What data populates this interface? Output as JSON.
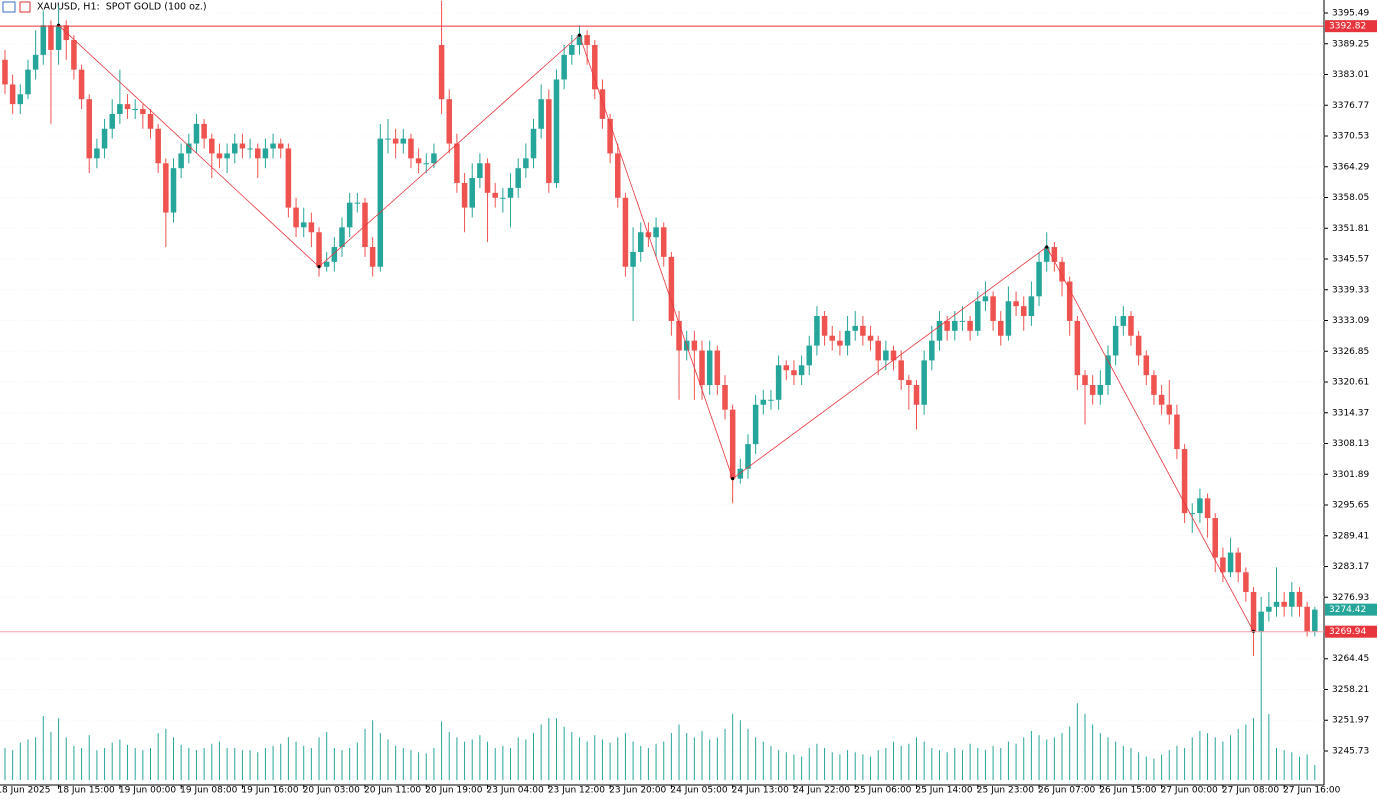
{
  "chart_data": {
    "type": "candlestick",
    "title": "XAUUSD, H1:  SPOT GOLD (100 oz.)",
    "up_color": "#26a69a",
    "down_color": "#ef5350",
    "volume_color": "#26a69a",
    "ylim": [
      3238.83,
      3398.13
    ],
    "yticks": [
      3395.49,
      3389.25,
      3383.01,
      3376.77,
      3370.53,
      3364.29,
      3358.05,
      3351.81,
      3345.57,
      3339.33,
      3333.09,
      3326.85,
      3320.61,
      3314.37,
      3308.13,
      3301.89,
      3295.65,
      3289.41,
      3283.17,
      3276.93,
      3264.45,
      3258.21,
      3251.97,
      3245.73
    ],
    "grid": true,
    "xlim": [
      -0.65,
      172.2
    ],
    "xticks": [
      {
        "value": -1,
        "label": "18 Jun 2025"
      },
      {
        "value": 7,
        "label": "18 Jun 15:00"
      },
      {
        "value": 15,
        "label": "19 Jun 00:00"
      },
      {
        "value": 23,
        "label": "19 Jun 08:00"
      },
      {
        "value": 31,
        "label": "19 Jun 16:00"
      },
      {
        "value": 39,
        "label": "20 Jun 03:00"
      },
      {
        "value": 47,
        "label": "20 Jun 11:00"
      },
      {
        "value": 55,
        "label": "20 Jun 19:00"
      },
      {
        "value": 63,
        "label": "23 Jun 04:00"
      },
      {
        "value": 71,
        "label": "23 Jun 12:00"
      },
      {
        "value": 79,
        "label": "23 Jun 20:00"
      },
      {
        "value": 87,
        "label": "24 Jun 05:00"
      },
      {
        "value": 95,
        "label": "24 Jun 13:00"
      },
      {
        "value": 103,
        "label": "24 Jun 22:00"
      },
      {
        "value": 111,
        "label": "25 Jun 06:00"
      },
      {
        "value": 119,
        "label": "25 Jun 14:00"
      },
      {
        "value": 127,
        "label": "25 Jun 23:00"
      },
      {
        "value": 135,
        "label": "26 Jun 07:00"
      },
      {
        "value": 143,
        "label": "26 Jun 15:00"
      },
      {
        "value": 151,
        "label": "27 Jun 00:00"
      },
      {
        "value": 159,
        "label": "27 Jun 08:00"
      },
      {
        "value": 167,
        "label": "27 Jun 16:00"
      }
    ],
    "open": [
      3386,
      3381,
      3377,
      3379,
      3384,
      3387,
      3393,
      3388,
      3393,
      3390,
      3384,
      3378,
      3366,
      3368,
      3372,
      3375,
      3377,
      3376,
      3376,
      3375,
      3372,
      3365,
      3355,
      3364,
      3367,
      3369,
      3373,
      3370,
      3367,
      3366,
      3367,
      3369,
      3368,
      3368,
      3366,
      3368,
      3369,
      3368,
      3356,
      3352,
      3353,
      3351,
      3344,
      3345,
      3348,
      3352,
      3357,
      3357,
      3348,
      3344,
      3370,
      3370,
      3369,
      3370,
      3366,
      3365,
      3365,
      3389,
      3378,
      3369,
      3361,
      3356,
      3362,
      3365,
      3359,
      3358,
      3358,
      3360,
      3364,
      3366,
      3372,
      3378,
      3361,
      3382,
      3387,
      3389,
      3391,
      3389,
      3380,
      3374,
      3367,
      3358,
      3344,
      3347,
      3351,
      3350,
      3352,
      3346,
      3333,
      3327,
      3329,
      3327,
      3320,
      3327,
      3320,
      3315,
      3301,
      3303,
      3308,
      3316,
      3317,
      3317,
      3324,
      3323,
      3322,
      3324,
      3328,
      3334,
      3330,
      3329,
      3328,
      3331,
      3332,
      3330,
      3329,
      3325,
      3327,
      3325,
      3321,
      3320,
      3316,
      3325,
      3329,
      3333,
      3331,
      3333,
      3333,
      3331,
      3337,
      3338,
      3333,
      3330,
      3337,
      3336,
      3334,
      3338,
      3345,
      3348,
      3345,
      3341,
      3333,
      3322,
      3320,
      3318,
      3320,
      3326,
      3332,
      3334,
      3330,
      3326,
      3322,
      3318,
      3316,
      3314,
      3307,
      3294,
      3294,
      3297,
      3293,
      3285,
      3282,
      3286,
      3282,
      3278,
      3270,
      3274,
      3275,
      3276,
      3275,
      3278,
      3275,
      3270
    ],
    "high": [
      3388,
      3383,
      3381,
      3386,
      3392,
      3396,
      3394,
      3397,
      3394,
      3391,
      3385,
      3379,
      3370,
      3374,
      3378,
      3384,
      3379,
      3378,
      3377,
      3376,
      3373,
      3366,
      3366,
      3369,
      3371,
      3375,
      3374,
      3371,
      3369,
      3369,
      3371,
      3371,
      3370,
      3369,
      3370,
      3371,
      3370,
      3369,
      3358,
      3356,
      3355,
      3352,
      3347,
      3350,
      3354,
      3359,
      3359,
      3358,
      3350,
      3373,
      3374,
      3372,
      3372,
      3371,
      3368,
      3367,
      3369,
      3398,
      3380,
      3371,
      3363,
      3365,
      3367,
      3366,
      3361,
      3360,
      3363,
      3366,
      3369,
      3374,
      3381,
      3380,
      3384,
      3389,
      3391,
      3393,
      3392,
      3390,
      3382,
      3375,
      3369,
      3359,
      3352,
      3353,
      3353,
      3354,
      3353,
      3347,
      3335,
      3331,
      3331,
      3329,
      3329,
      3328,
      3322,
      3316,
      3305,
      3310,
      3318,
      3319,
      3319,
      3326,
      3325,
      3325,
      3326,
      3330,
      3336,
      3335,
      3332,
      3331,
      3334,
      3335,
      3334,
      3332,
      3330,
      3329,
      3328,
      3327,
      3322,
      3321,
      3327,
      3332,
      3335,
      3334,
      3335,
      3336,
      3334,
      3339,
      3341,
      3339,
      3335,
      3340,
      3339,
      3338,
      3341,
      3347,
      3351,
      3349,
      3346,
      3342,
      3334,
      3323,
      3322,
      3323,
      3328,
      3334,
      3336,
      3335,
      3331,
      3327,
      3323,
      3320,
      3321,
      3316,
      3308,
      3296,
      3299,
      3298,
      3294,
      3287,
      3289,
      3287,
      3283,
      3279,
      3277,
      3278,
      3283,
      3278,
      3280,
      3279,
      3276,
      3275
    ],
    "low": [
      3379,
      3375,
      3375,
      3378,
      3382,
      3385,
      3373,
      3385,
      3386,
      3382,
      3376,
      3363,
      3364,
      3366,
      3370,
      3373,
      3374,
      3374,
      3372,
      3370,
      3363,
      3348,
      3353,
      3362,
      3365,
      3367,
      3368,
      3362,
      3364,
      3363,
      3365,
      3366,
      3366,
      3362,
      3364,
      3366,
      3366,
      3354,
      3350,
      3350,
      3348,
      3342,
      3343,
      3343,
      3346,
      3350,
      3355,
      3346,
      3342,
      3343,
      3367,
      3366,
      3367,
      3364,
      3363,
      3363,
      3364,
      3375,
      3367,
      3359,
      3351,
      3354,
      3360,
      3349,
      3356,
      3355,
      3352,
      3358,
      3362,
      3364,
      3370,
      3359,
      3360,
      3380,
      3385,
      3387,
      3385,
      3378,
      3372,
      3365,
      3356,
      3342,
      3333,
      3345,
      3348,
      3346,
      3344,
      3330,
      3317,
      3325,
      3317,
      3317,
      3318,
      3318,
      3313,
      3296,
      3300,
      3301,
      3306,
      3314,
      3315,
      3315,
      3321,
      3320,
      3320,
      3322,
      3326,
      3328,
      3327,
      3326,
      3326,
      3329,
      3328,
      3327,
      3322,
      3323,
      3323,
      3319,
      3315,
      3311,
      3314,
      3323,
      3327,
      3329,
      3329,
      3331,
      3329,
      3330,
      3335,
      3331,
      3328,
      3329,
      3334,
      3331,
      3332,
      3336,
      3343,
      3343,
      3338,
      3330,
      3319,
      3312,
      3316,
      3316,
      3318,
      3324,
      3330,
      3328,
      3324,
      3320,
      3316,
      3314,
      3312,
      3305,
      3292,
      3290,
      3292,
      3289,
      3282,
      3280,
      3281,
      3280,
      3276,
      3265,
      3256,
      3272,
      3273,
      3273,
      3273,
      3273,
      3269,
      3269
    ],
    "close": [
      3381,
      3377,
      3379,
      3384,
      3387,
      3393,
      3388,
      3393,
      3390,
      3384,
      3378,
      3366,
      3368,
      3372,
      3375,
      3377,
      3376,
      3376,
      3375,
      3372,
      3365,
      3355,
      3364,
      3367,
      3369,
      3373,
      3370,
      3367,
      3366,
      3367,
      3369,
      3368,
      3368,
      3366,
      3368,
      3369,
      3368,
      3356,
      3352,
      3353,
      3351,
      3344,
      3345,
      3348,
      3352,
      3357,
      3357,
      3348,
      3344,
      3370,
      3370,
      3369,
      3370,
      3366,
      3365,
      3365,
      3367,
      3378,
      3369,
      3361,
      3356,
      3362,
      3365,
      3359,
      3358,
      3358,
      3360,
      3364,
      3366,
      3372,
      3378,
      3361,
      3382,
      3387,
      3389,
      3391,
      3389,
      3380,
      3374,
      3367,
      3358,
      3344,
      3347,
      3351,
      3350,
      3352,
      3346,
      3333,
      3327,
      3329,
      3327,
      3320,
      3327,
      3320,
      3315,
      3301,
      3303,
      3308,
      3316,
      3317,
      3317,
      3324,
      3323,
      3322,
      3324,
      3328,
      3334,
      3330,
      3329,
      3328,
      3331,
      3332,
      3330,
      3329,
      3325,
      3327,
      3325,
      3321,
      3320,
      3316,
      3325,
      3329,
      3333,
      3331,
      3333,
      3333,
      3331,
      3337,
      3338,
      3333,
      3330,
      3337,
      3336,
      3334,
      3338,
      3345,
      3348,
      3345,
      3341,
      3333,
      3322,
      3320,
      3318,
      3320,
      3326,
      3332,
      3334,
      3330,
      3326,
      3322,
      3318,
      3316,
      3314,
      3307,
      3294,
      3294,
      3297,
      3293,
      3285,
      3282,
      3286,
      3282,
      3278,
      3270,
      3274,
      3275,
      3276,
      3275,
      3278,
      3275,
      3270,
      3274.42
    ],
    "volume": [
      30,
      28,
      35,
      38,
      40,
      60,
      45,
      58,
      40,
      32,
      30,
      42,
      28,
      30,
      35,
      38,
      33,
      30,
      28,
      30,
      44,
      48,
      40,
      33,
      30,
      28,
      30,
      34,
      36,
      30,
      30,
      28,
      28,
      26,
      30,
      32,
      34,
      40,
      36,
      32,
      30,
      40,
      45,
      30,
      28,
      30,
      35,
      48,
      56,
      44,
      38,
      32,
      30,
      28,
      26,
      25,
      30,
      55,
      45,
      40,
      36,
      38,
      42,
      36,
      30,
      32,
      30,
      40,
      38,
      44,
      52,
      58,
      58,
      50,
      45,
      40,
      36,
      42,
      38,
      35,
      40,
      44,
      36,
      32,
      30,
      34,
      36,
      44,
      52,
      44,
      40,
      46,
      38,
      40,
      48,
      62,
      56,
      48,
      40,
      36,
      32,
      28,
      26,
      24,
      22,
      30,
      34,
      30,
      26,
      24,
      28,
      26,
      24,
      22,
      28,
      30,
      36,
      32,
      34,
      40,
      36,
      30,
      28,
      26,
      30,
      28,
      34,
      30,
      28,
      32,
      30,
      36,
      34,
      40,
      46,
      42,
      38,
      40,
      44,
      50,
      72,
      62,
      52,
      44,
      40,
      36,
      32,
      30,
      26,
      22,
      20,
      24,
      28,
      32,
      30,
      40,
      46,
      44,
      40,
      36,
      42,
      48,
      52,
      58,
      75,
      62,
      30,
      28,
      26,
      22,
      24,
      14
    ],
    "zigzag": {
      "color": "#e8343c",
      "x": [
        7,
        41,
        75,
        95,
        136,
        163
      ],
      "y": [
        3393,
        3344,
        3391,
        3301,
        3348,
        3270
      ]
    },
    "levels": [
      {
        "value": 3392.82,
        "color": "#e8343c"
      },
      {
        "value": 3269.94,
        "color": "#f4a0a8"
      }
    ]
  }
}
